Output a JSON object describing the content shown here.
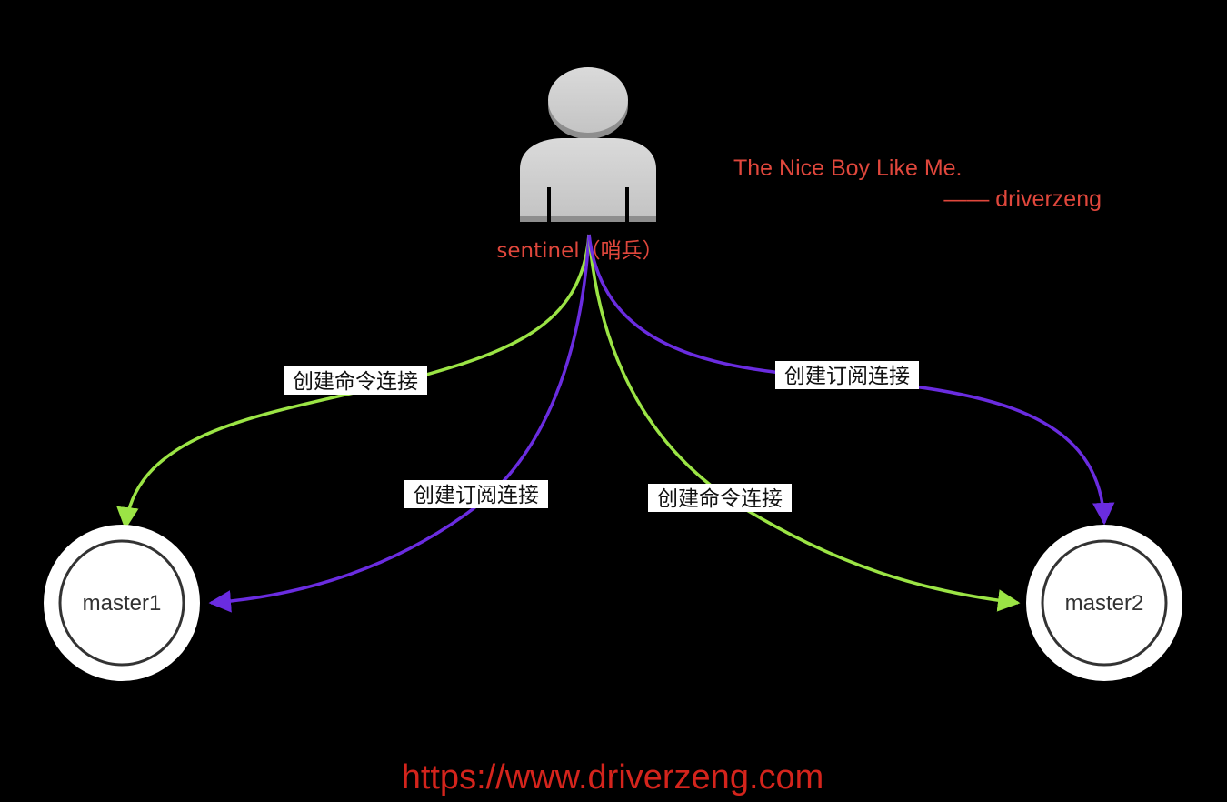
{
  "sentinel": {
    "label": "sentinel（哨兵）",
    "icon": "person-icon"
  },
  "nodes": [
    {
      "id": "master1",
      "label": "master1"
    },
    {
      "id": "master2",
      "label": "master2"
    }
  ],
  "edges": [
    {
      "from": "sentinel",
      "to": "master1",
      "kind": "command",
      "label": "创建命令连接",
      "color": "#9be445"
    },
    {
      "from": "sentinel",
      "to": "master1",
      "kind": "subscribe",
      "label": "创建订阅连接",
      "color": "#6a2ce0"
    },
    {
      "from": "sentinel",
      "to": "master2",
      "kind": "command",
      "label": "创建命令连接",
      "color": "#9be445"
    },
    {
      "from": "sentinel",
      "to": "master2",
      "kind": "subscribe",
      "label": "创建订阅连接",
      "color": "#6a2ce0"
    }
  ],
  "quote": {
    "line1": "The Nice Boy Like Me.",
    "line2": "—— driverzeng"
  },
  "footer": {
    "url": "https://www.driverzeng.com"
  },
  "colors": {
    "background": "#000000",
    "command_edge": "#9be445",
    "subscribe_edge": "#6a2ce0",
    "accent_text": "#e0473c",
    "footer_text": "#d4241c"
  }
}
